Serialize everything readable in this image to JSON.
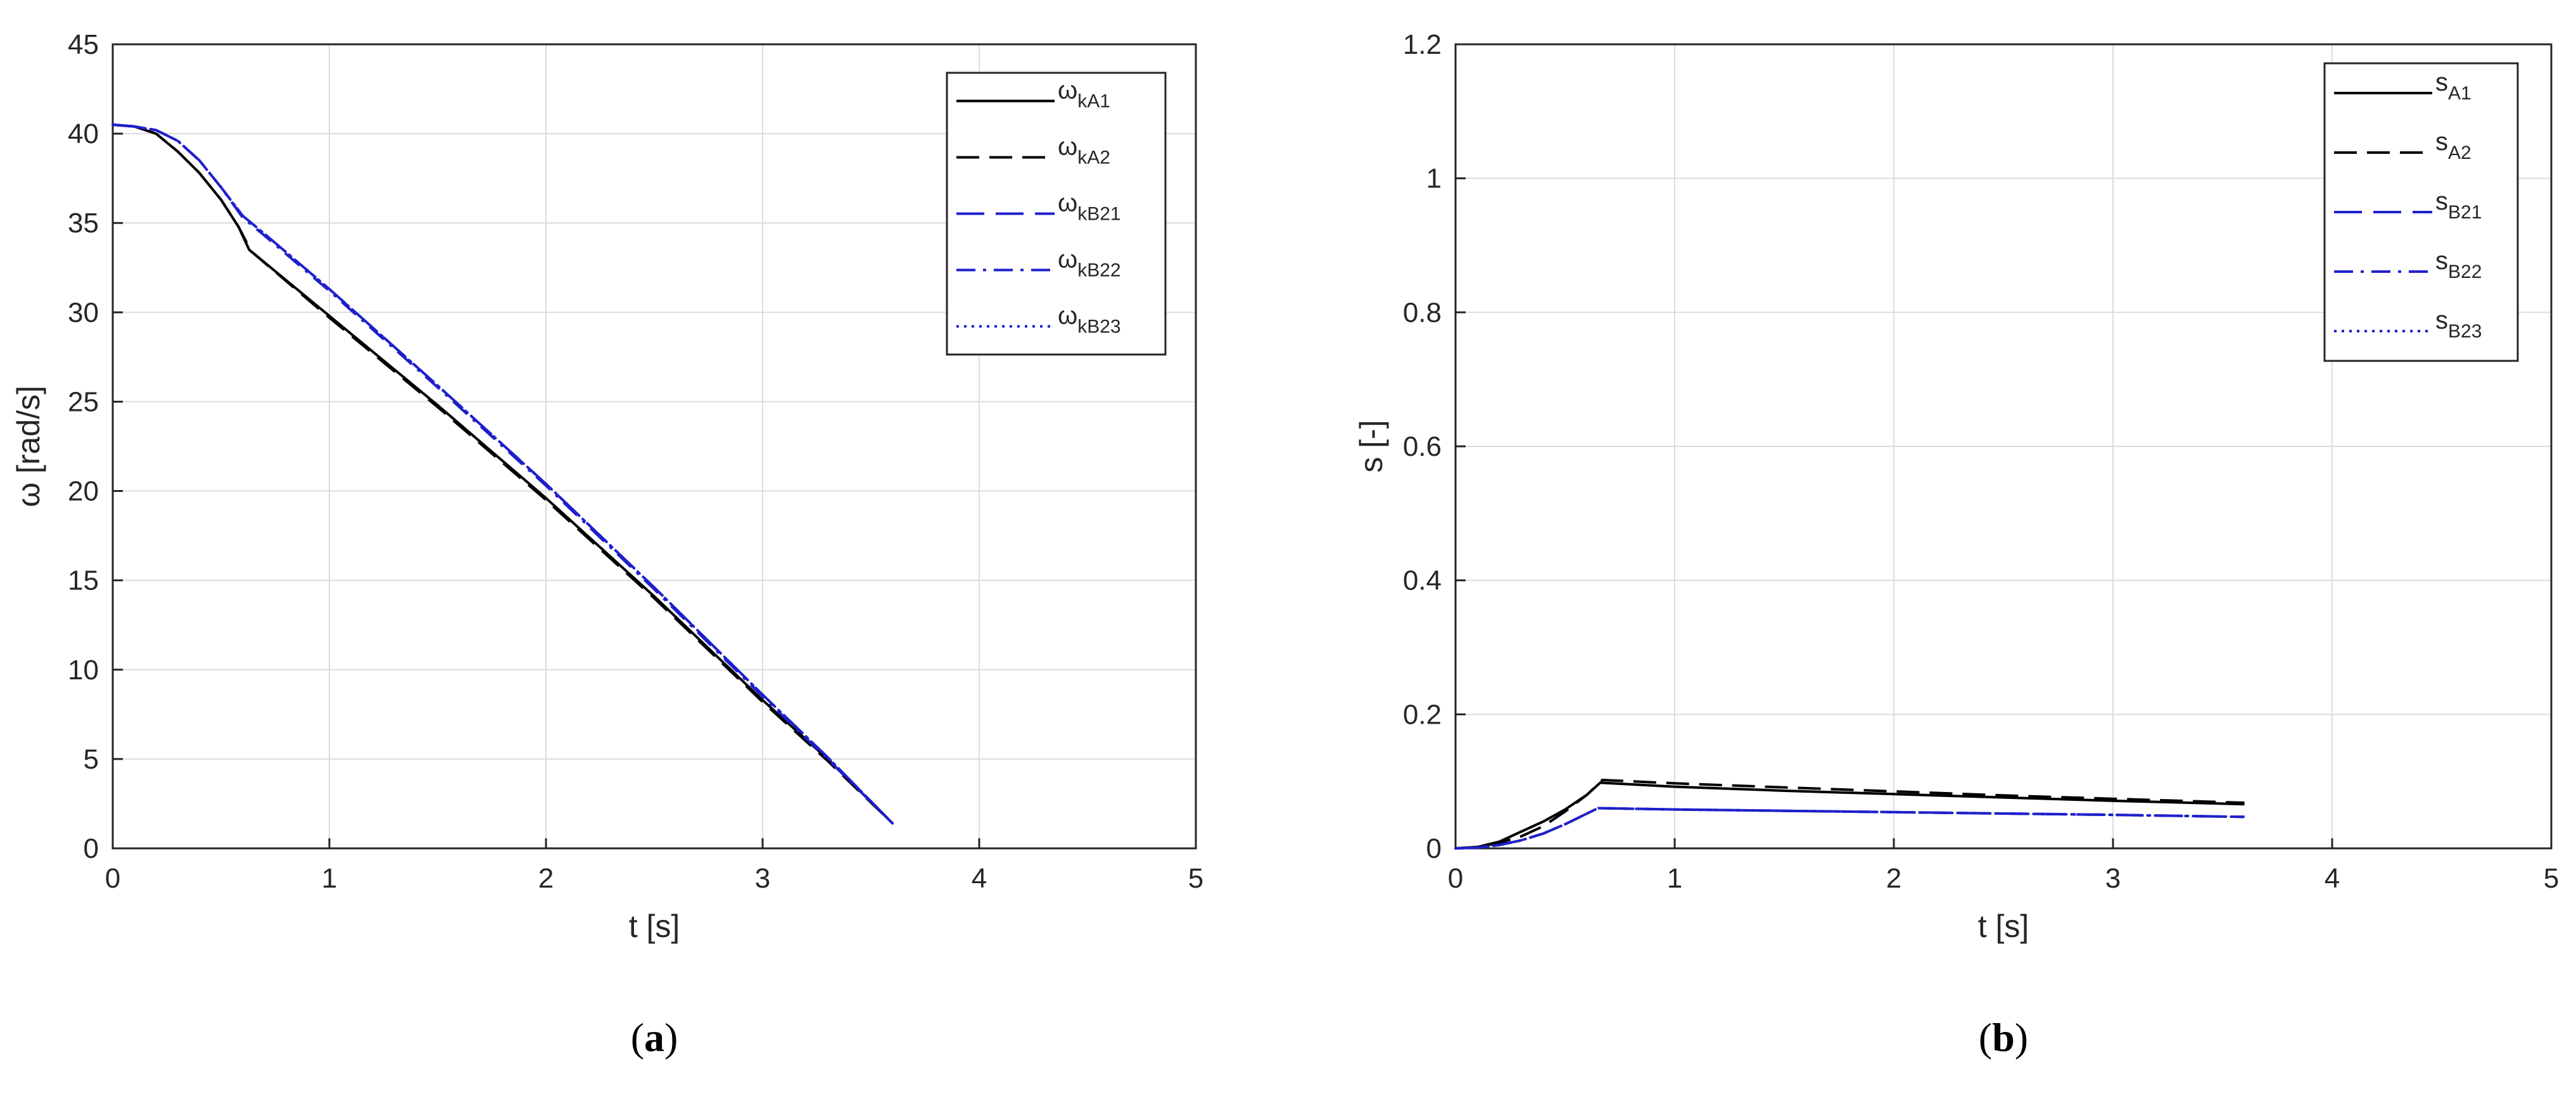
{
  "chart_data": [
    {
      "type": "line",
      "caption_open": "(",
      "caption_letter": "a",
      "caption_close": ")",
      "xlabel": "t [s]",
      "ylabel": "ω [rad/s]",
      "xlim": [
        0,
        5
      ],
      "ylim": [
        0,
        45
      ],
      "xticks": [
        0,
        1,
        2,
        3,
        4,
        5
      ],
      "yticks": [
        0,
        5,
        10,
        15,
        20,
        25,
        30,
        35,
        40,
        45
      ],
      "grid": true,
      "legend_position": "top-right",
      "series": [
        {
          "name": "ω",
          "name_sub": "kA1",
          "color": "#000000",
          "dash": "solid",
          "x": [
            0,
            0.1,
            0.2,
            0.3,
            0.4,
            0.5,
            0.58,
            0.63,
            1.0,
            1.5,
            2.0,
            2.5,
            3.0,
            3.3,
            3.6
          ],
          "y": [
            40.5,
            40.4,
            40.0,
            39.0,
            37.8,
            36.3,
            34.8,
            33.5,
            29.8,
            24.8,
            19.6,
            14.1,
            8.3,
            5.0,
            1.4
          ]
        },
        {
          "name": "ω",
          "name_sub": "kA2",
          "color": "#000000",
          "dash": "dashed",
          "x": [
            0,
            0.1,
            0.2,
            0.3,
            0.4,
            0.5,
            0.58,
            0.64,
            1.0,
            1.5,
            2.0,
            2.5,
            3.0,
            3.3,
            3.6
          ],
          "y": [
            40.5,
            40.4,
            40.0,
            39.0,
            37.8,
            36.3,
            34.8,
            33.4,
            29.7,
            24.7,
            19.5,
            14.0,
            8.2,
            4.9,
            1.4
          ]
        },
        {
          "name": "ω",
          "name_sub": "kB21",
          "color": "#1f1fcc",
          "dash": "longdash",
          "x": [
            0,
            0.1,
            0.2,
            0.3,
            0.4,
            0.5,
            0.6,
            0.7,
            1.0,
            1.5,
            2.0,
            2.5,
            3.0,
            3.3,
            3.6
          ],
          "y": [
            40.5,
            40.4,
            40.2,
            39.6,
            38.5,
            37.0,
            35.4,
            34.4,
            31.3,
            25.9,
            20.4,
            14.6,
            8.6,
            5.1,
            1.4
          ]
        },
        {
          "name": "ω",
          "name_sub": "kB22",
          "color": "#1f1fcc",
          "dash": "dashdot",
          "x": [
            0,
            0.1,
            0.2,
            0.3,
            0.4,
            0.5,
            0.6,
            0.7,
            1.0,
            1.5,
            2.0,
            2.5,
            3.0,
            3.3,
            3.6
          ],
          "y": [
            40.5,
            40.4,
            40.2,
            39.6,
            38.5,
            37.0,
            35.3,
            34.3,
            31.2,
            25.8,
            20.3,
            14.5,
            8.5,
            5.0,
            1.4
          ]
        },
        {
          "name": "ω",
          "name_sub": "kB23",
          "color": "#1f1fcc",
          "dash": "dotted",
          "x": [
            0,
            0.1,
            0.2,
            0.3,
            0.4,
            0.5,
            0.6,
            0.7,
            1.0,
            1.5,
            2.0,
            2.5,
            3.0,
            3.3,
            3.6
          ],
          "y": [
            40.5,
            40.4,
            40.2,
            39.6,
            38.5,
            37.0,
            35.4,
            34.4,
            31.3,
            25.9,
            20.4,
            14.6,
            8.6,
            5.1,
            1.4
          ]
        }
      ]
    },
    {
      "type": "line",
      "caption_open": "(",
      "caption_letter": "b",
      "caption_close": ")",
      "xlabel": "t [s]",
      "ylabel": "s [-]",
      "xlim": [
        0,
        5
      ],
      "ylim": [
        0,
        1.2
      ],
      "xticks": [
        0,
        1,
        2,
        3,
        4,
        5
      ],
      "yticks": [
        0,
        0.2,
        0.4,
        0.6,
        0.8,
        1,
        1.2
      ],
      "grid": true,
      "legend_position": "top-right",
      "series": [
        {
          "name": "s",
          "name_sub": "A1",
          "color": "#000000",
          "dash": "solid",
          "x": [
            0,
            0.1,
            0.2,
            0.3,
            0.4,
            0.5,
            0.6,
            0.66,
            1.0,
            1.5,
            2.0,
            2.5,
            3.0,
            3.6
          ],
          "y": [
            0,
            0.002,
            0.01,
            0.025,
            0.04,
            0.058,
            0.08,
            0.098,
            0.092,
            0.086,
            0.081,
            0.076,
            0.071,
            0.066
          ]
        },
        {
          "name": "s",
          "name_sub": "A2",
          "color": "#000000",
          "dash": "dashed",
          "x": [
            0,
            0.1,
            0.2,
            0.3,
            0.4,
            0.5,
            0.6,
            0.67,
            1.0,
            1.5,
            2.0,
            2.5,
            3.0,
            3.6
          ],
          "y": [
            0,
            0.002,
            0.008,
            0.018,
            0.033,
            0.055,
            0.08,
            0.102,
            0.097,
            0.091,
            0.085,
            0.079,
            0.074,
            0.068
          ]
        },
        {
          "name": "s",
          "name_sub": "B21",
          "color": "#1f1fcc",
          "dash": "longdash",
          "x": [
            0,
            0.1,
            0.2,
            0.3,
            0.4,
            0.5,
            0.6,
            0.65,
            1.0,
            1.5,
            2.0,
            2.5,
            3.0,
            3.6
          ],
          "y": [
            0,
            0.001,
            0.005,
            0.012,
            0.022,
            0.036,
            0.052,
            0.06,
            0.058,
            0.056,
            0.054,
            0.052,
            0.05,
            0.047
          ]
        },
        {
          "name": "s",
          "name_sub": "B22",
          "color": "#1f1fcc",
          "dash": "dashdot",
          "x": [
            0,
            0.1,
            0.2,
            0.3,
            0.4,
            0.5,
            0.6,
            0.65,
            1.0,
            1.5,
            2.0,
            2.5,
            3.0,
            3.6
          ],
          "y": [
            0,
            0.001,
            0.005,
            0.012,
            0.022,
            0.036,
            0.052,
            0.06,
            0.058,
            0.056,
            0.054,
            0.052,
            0.05,
            0.047
          ]
        },
        {
          "name": "s",
          "name_sub": "B23",
          "color": "#1f1fcc",
          "dash": "dotted",
          "x": [
            0,
            0.1,
            0.2,
            0.3,
            0.4,
            0.5,
            0.6,
            0.65,
            1.0,
            1.5,
            2.0,
            2.5,
            3.0,
            3.6
          ],
          "y": [
            0,
            0.001,
            0.005,
            0.012,
            0.022,
            0.036,
            0.052,
            0.06,
            0.058,
            0.056,
            0.054,
            0.052,
            0.05,
            0.047
          ]
        }
      ]
    }
  ]
}
